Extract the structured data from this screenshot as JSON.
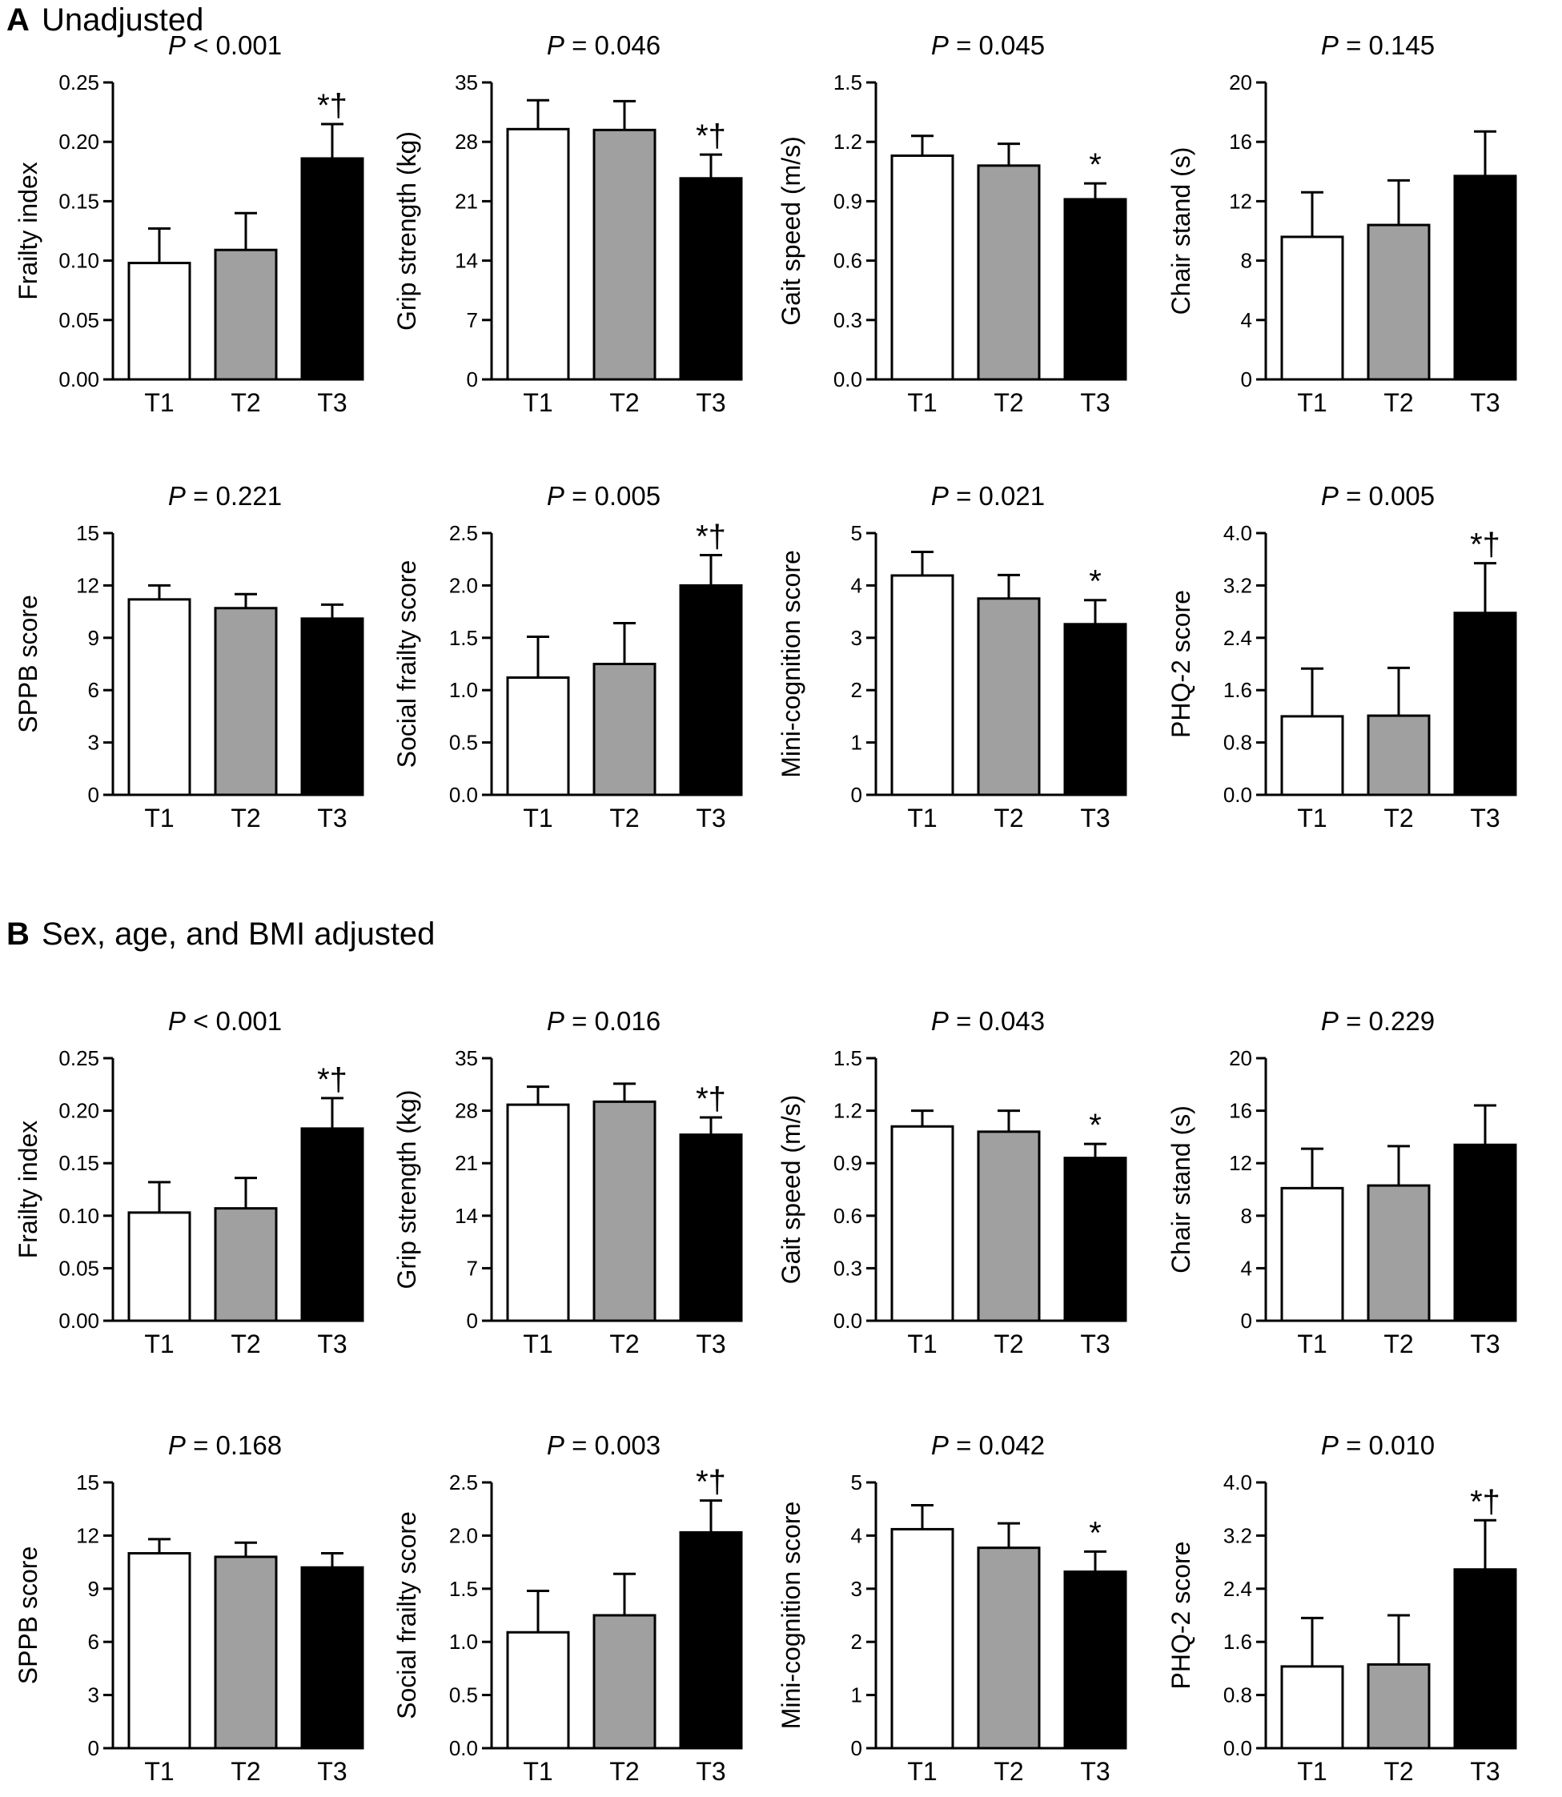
{
  "figure": {
    "panels": [
      {
        "letter": "A",
        "title": "Unadjusted"
      },
      {
        "letter": "B",
        "title": "Sex, age, and BMI adjusted"
      }
    ],
    "p_label": "P",
    "bar_colors": [
      "#ffffff",
      "#a0a0a0",
      "#000000"
    ]
  },
  "chart_data": [
    {
      "type": "bar",
      "panel": "A",
      "categories": [
        "T1",
        "T2",
        "T3"
      ],
      "ylabel": "Frailty index",
      "ylim": [
        0,
        0.25
      ],
      "yticks": [
        "0.00",
        "0.05",
        "0.10",
        "0.15",
        "0.20",
        "0.25"
      ],
      "values": [
        0.098,
        0.109,
        0.186
      ],
      "errors": [
        0.029,
        0.031,
        0.029
      ],
      "p_value": "< 0.001",
      "significance": "*†"
    },
    {
      "type": "bar",
      "panel": "A",
      "categories": [
        "T1",
        "T2",
        "T3"
      ],
      "ylabel": "Grip strength (kg)",
      "ylim": [
        0,
        35
      ],
      "yticks": [
        "0",
        "7",
        "14",
        "21",
        "28",
        "35"
      ],
      "values": [
        29.5,
        29.4,
        23.7
      ],
      "errors": [
        3.4,
        3.4,
        2.8
      ],
      "p_value": "= 0.046",
      "significance": "*†"
    },
    {
      "type": "bar",
      "panel": "A",
      "categories": [
        "T1",
        "T2",
        "T3"
      ],
      "ylabel": "Gait speed (m/s)",
      "ylim": [
        0,
        1.5
      ],
      "yticks": [
        "0.0",
        "0.3",
        "0.6",
        "0.9",
        "1.2",
        "1.5"
      ],
      "values": [
        1.13,
        1.08,
        0.91
      ],
      "errors": [
        0.1,
        0.11,
        0.08
      ],
      "p_value": "= 0.045",
      "significance": "*"
    },
    {
      "type": "bar",
      "panel": "A",
      "categories": [
        "T1",
        "T2",
        "T3"
      ],
      "ylabel": "Chair stand (s)",
      "ylim": [
        0,
        20
      ],
      "yticks": [
        "0",
        "4",
        "8",
        "12",
        "16",
        "20"
      ],
      "values": [
        9.6,
        10.4,
        13.7
      ],
      "errors": [
        3.0,
        3.0,
        3.0
      ],
      "p_value": "= 0.145",
      "significance": ""
    },
    {
      "type": "bar",
      "panel": "A",
      "categories": [
        "T1",
        "T2",
        "T3"
      ],
      "ylabel": "SPPB score",
      "ylim": [
        0,
        15
      ],
      "yticks": [
        "0",
        "3",
        "6",
        "9",
        "12",
        "15"
      ],
      "values": [
        11.2,
        10.7,
        10.1
      ],
      "errors": [
        0.8,
        0.8,
        0.8
      ],
      "p_value": "= 0.221",
      "significance": ""
    },
    {
      "type": "bar",
      "panel": "A",
      "categories": [
        "T1",
        "T2",
        "T3"
      ],
      "ylabel": "Social frailty score",
      "ylim": [
        0,
        2.5
      ],
      "yticks": [
        "0.0",
        "0.5",
        "1.0",
        "1.5",
        "2.0",
        "2.5"
      ],
      "values": [
        1.12,
        1.25,
        2.0
      ],
      "errors": [
        0.39,
        0.39,
        0.29
      ],
      "p_value": "= 0.005",
      "significance": "*†"
    },
    {
      "type": "bar",
      "panel": "A",
      "categories": [
        "T1",
        "T2",
        "T3"
      ],
      "ylabel": "Mini-cognition score",
      "ylim": [
        0,
        5
      ],
      "yticks": [
        "0",
        "1",
        "2",
        "3",
        "4",
        "5"
      ],
      "values": [
        4.19,
        3.75,
        3.26
      ],
      "errors": [
        0.45,
        0.45,
        0.46
      ],
      "p_value": "= 0.021",
      "significance": "*"
    },
    {
      "type": "bar",
      "panel": "A",
      "categories": [
        "T1",
        "T2",
        "T3"
      ],
      "ylabel": "PHQ-2 score",
      "ylim": [
        0,
        4.0
      ],
      "yticks": [
        "0.0",
        "0.8",
        "1.6",
        "2.4",
        "3.2",
        "4.0"
      ],
      "values": [
        1.2,
        1.21,
        2.78
      ],
      "errors": [
        0.73,
        0.73,
        0.76
      ],
      "p_value": "= 0.005",
      "significance": "*†"
    },
    {
      "type": "bar",
      "panel": "B",
      "categories": [
        "T1",
        "T2",
        "T3"
      ],
      "ylabel": "Frailty index",
      "ylim": [
        0,
        0.25
      ],
      "yticks": [
        "0.00",
        "0.05",
        "0.10",
        "0.15",
        "0.20",
        "0.25"
      ],
      "values": [
        0.103,
        0.107,
        0.183
      ],
      "errors": [
        0.029,
        0.029,
        0.029
      ],
      "p_value": "< 0.001",
      "significance": "*†"
    },
    {
      "type": "bar",
      "panel": "B",
      "categories": [
        "T1",
        "T2",
        "T3"
      ],
      "ylabel": "Grip strength (kg)",
      "ylim": [
        0,
        35
      ],
      "yticks": [
        "0",
        "7",
        "14",
        "21",
        "28",
        "35"
      ],
      "values": [
        28.8,
        29.2,
        24.8
      ],
      "errors": [
        2.4,
        2.4,
        2.3
      ],
      "p_value": "= 0.016",
      "significance": "*†"
    },
    {
      "type": "bar",
      "panel": "B",
      "categories": [
        "T1",
        "T2",
        "T3"
      ],
      "ylabel": "Gait speed (m/s)",
      "ylim": [
        0,
        1.5
      ],
      "yticks": [
        "0.0",
        "0.3",
        "0.6",
        "0.9",
        "1.2",
        "1.5"
      ],
      "values": [
        1.11,
        1.08,
        0.93
      ],
      "errors": [
        0.09,
        0.12,
        0.08
      ],
      "p_value": "= 0.043",
      "significance": "*"
    },
    {
      "type": "bar",
      "panel": "B",
      "categories": [
        "T1",
        "T2",
        "T3"
      ],
      "ylabel": "Chair stand (s)",
      "ylim": [
        0,
        20
      ],
      "yticks": [
        "0",
        "4",
        "8",
        "12",
        "16",
        "20"
      ],
      "values": [
        10.1,
        10.3,
        13.4
      ],
      "errors": [
        3.0,
        3.0,
        3.0
      ],
      "p_value": "= 0.229",
      "significance": ""
    },
    {
      "type": "bar",
      "panel": "B",
      "categories": [
        "T1",
        "T2",
        "T3"
      ],
      "ylabel": "SPPB score",
      "ylim": [
        0,
        15
      ],
      "yticks": [
        "0",
        "3",
        "6",
        "9",
        "12",
        "15"
      ],
      "values": [
        11.0,
        10.8,
        10.2
      ],
      "errors": [
        0.8,
        0.8,
        0.8
      ],
      "p_value": "= 0.168",
      "significance": ""
    },
    {
      "type": "bar",
      "panel": "B",
      "categories": [
        "T1",
        "T2",
        "T3"
      ],
      "ylabel": "Social frailty score",
      "ylim": [
        0,
        2.5
      ],
      "yticks": [
        "0.0",
        "0.5",
        "1.0",
        "1.5",
        "2.0",
        "2.5"
      ],
      "values": [
        1.09,
        1.25,
        2.03
      ],
      "errors": [
        0.39,
        0.39,
        0.3
      ],
      "p_value": "= 0.003",
      "significance": "*†"
    },
    {
      "type": "bar",
      "panel": "B",
      "categories": [
        "T1",
        "T2",
        "T3"
      ],
      "ylabel": "Mini-cognition score",
      "ylim": [
        0,
        5
      ],
      "yticks": [
        "0",
        "1",
        "2",
        "3",
        "4",
        "5"
      ],
      "values": [
        4.12,
        3.77,
        3.32
      ],
      "errors": [
        0.45,
        0.46,
        0.38
      ],
      "p_value": "= 0.042",
      "significance": "*"
    },
    {
      "type": "bar",
      "panel": "B",
      "categories": [
        "T1",
        "T2",
        "T3"
      ],
      "ylabel": "PHQ-2 score",
      "ylim": [
        0,
        4.0
      ],
      "yticks": [
        "0.0",
        "0.8",
        "1.6",
        "2.4",
        "3.2",
        "4.0"
      ],
      "values": [
        1.23,
        1.26,
        2.69
      ],
      "errors": [
        0.73,
        0.74,
        0.74
      ],
      "p_value": "= 0.010",
      "significance": "*†"
    }
  ]
}
